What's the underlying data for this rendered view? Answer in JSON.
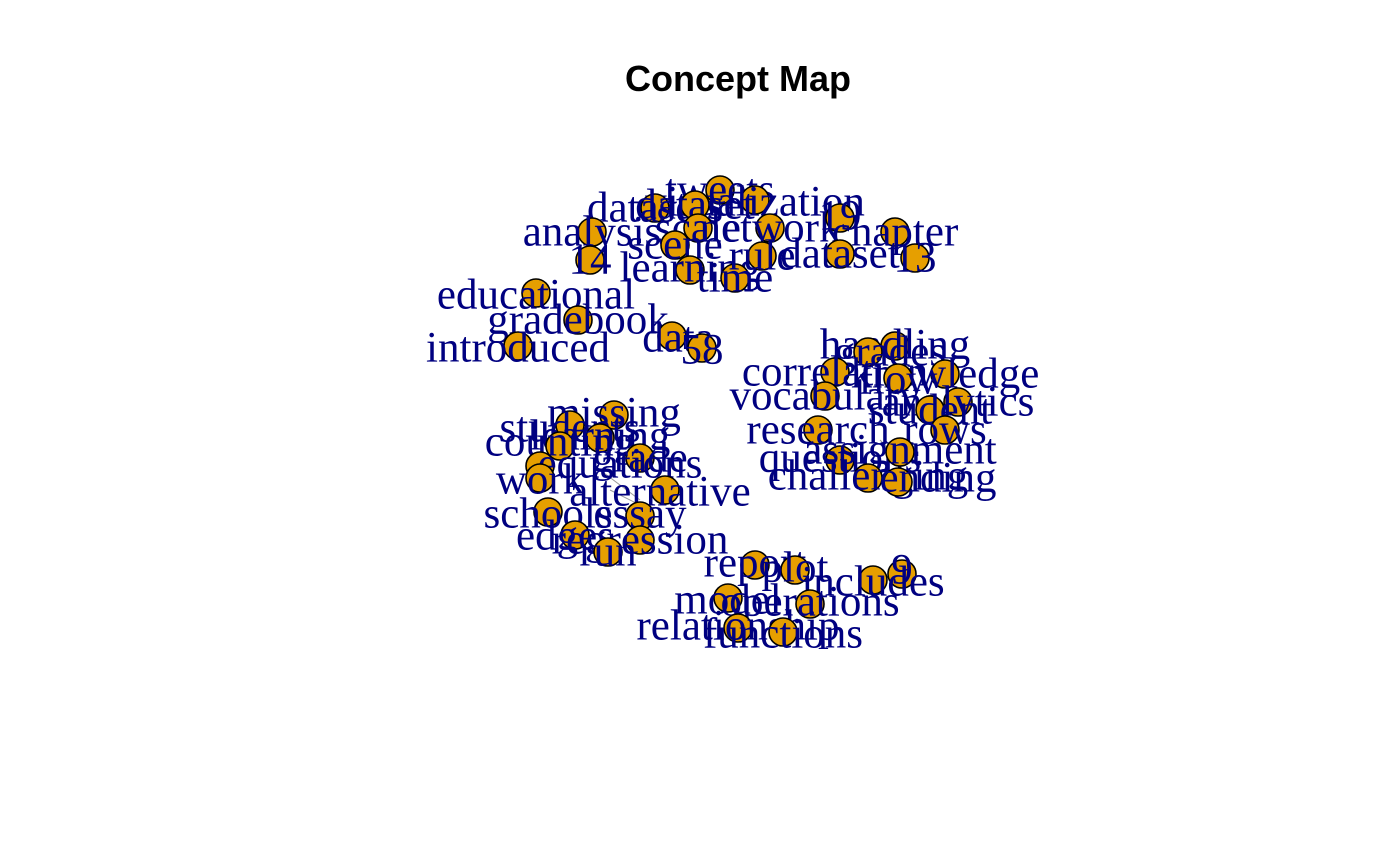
{
  "title": "Concept Map",
  "colors": {
    "node_fill": "#E69F00",
    "node_stroke": "#000000",
    "label": "#000080",
    "edge": "#999999"
  },
  "clusters": [
    {
      "name": "top",
      "nodes": [
        "tweets",
        "visualization",
        "datasets",
        "dataset2",
        "scale",
        "network",
        "analysis",
        "scene",
        "19",
        "chapter",
        "dataset",
        "14",
        "learning",
        "time",
        "rule",
        "13"
      ]
    },
    {
      "name": "left-upper",
      "nodes": [
        "educational",
        "gradebook",
        "introduced",
        "data",
        "58"
      ]
    },
    {
      "name": "right-middle",
      "nodes": [
        "handling",
        "grades",
        "knowledge",
        "correlation",
        "flow",
        "analytics",
        "vocabulary",
        "student",
        "research",
        "rows",
        "questions",
        "assignment",
        "challenging",
        "ending"
      ]
    },
    {
      "name": "left-middle",
      "nodes": [
        "missing",
        "students",
        "learning2",
        "counting",
        "grade",
        "equations",
        "work",
        "alternative",
        "schools",
        "essay",
        "edges",
        "regression",
        "run"
      ]
    },
    {
      "name": "bottom",
      "nodes": [
        "report",
        "plot",
        "9",
        "includes",
        "model",
        "operations",
        "relationship",
        "functions"
      ]
    }
  ]
}
